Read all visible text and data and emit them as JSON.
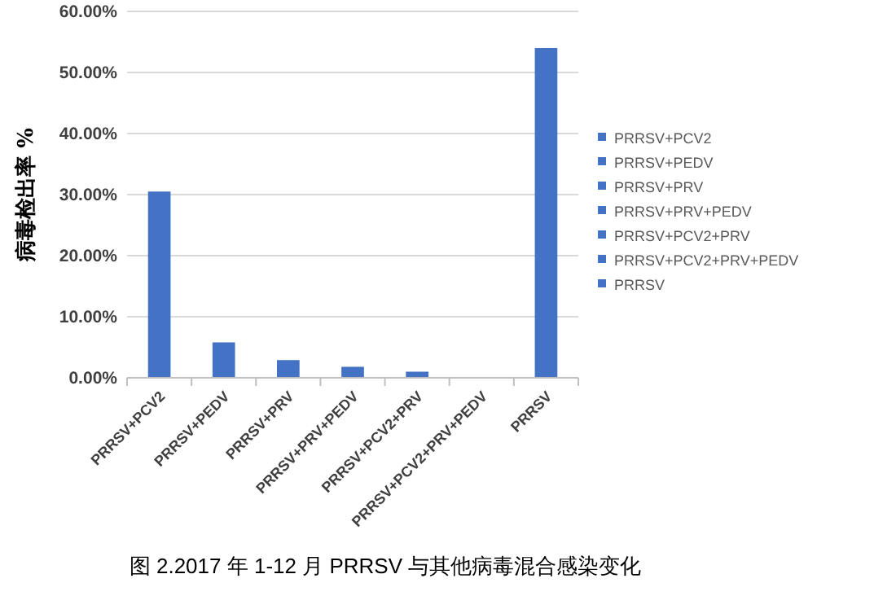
{
  "chart_data": {
    "type": "bar",
    "title": "图 2.2017 年 1-12 月 PRRSV 与其他病毒混合感染变化",
    "ylabel": "病毒检出率 %",
    "categories": [
      "PRRSV+PCV2",
      "PRRSV+PEDV",
      "PRRSV+PRV",
      "PRRSV+PRV+PEDV",
      "PRRSV+PCV2+PRV",
      "PRRSV+PCV2+PRV+PEDV",
      "PRRSV"
    ],
    "series": [
      {
        "name": "PRRSV+PCV2",
        "color": "#4472c4",
        "values": [
          30.5,
          null,
          null,
          null,
          null,
          null,
          null
        ]
      },
      {
        "name": "PRRSV+PEDV",
        "color": "#4472c4",
        "values": [
          null,
          5.8,
          null,
          null,
          null,
          null,
          null
        ]
      },
      {
        "name": "PRRSV+PRV",
        "color": "#4472c4",
        "values": [
          null,
          null,
          2.9,
          null,
          null,
          null,
          null
        ]
      },
      {
        "name": "PRRSV+PRV+PEDV",
        "color": "#4472c4",
        "values": [
          null,
          null,
          null,
          1.8,
          null,
          null,
          null
        ]
      },
      {
        "name": "PRRSV+PCV2+PRV",
        "color": "#4472c4",
        "values": [
          null,
          null,
          null,
          null,
          1.0,
          null,
          null
        ]
      },
      {
        "name": "PRRSV+PCV2+PRV+PEDV",
        "color": "#4472c4",
        "values": [
          null,
          null,
          null,
          null,
          null,
          0,
          null
        ]
      },
      {
        "name": "PRRSV",
        "color": "#4472c4",
        "values": [
          null,
          null,
          null,
          null,
          null,
          null,
          54.0
        ]
      }
    ],
    "ylim": [
      0,
      60
    ],
    "yticks": [
      {
        "value": 0,
        "label": "0.00%"
      },
      {
        "value": 10,
        "label": "10.00%"
      },
      {
        "value": 20,
        "label": "20.00%"
      },
      {
        "value": 30,
        "label": "30.00%"
      },
      {
        "value": 40,
        "label": "40.00%"
      },
      {
        "value": 50,
        "label": "50.00%"
      },
      {
        "value": 60,
        "label": "60.00%"
      }
    ],
    "grid": "y",
    "legend": "right"
  }
}
